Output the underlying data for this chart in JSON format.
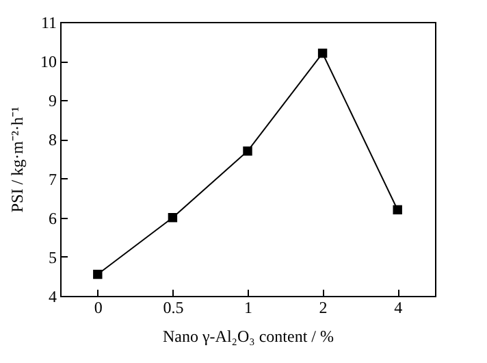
{
  "chart_data": {
    "type": "line",
    "xlabel": "Nano γ-Al₂O₃ content / %",
    "ylabel": "PSI / kg·m⁻²·h⁻¹",
    "categories": [
      "0",
      "0.5",
      "1",
      "2",
      "4"
    ],
    "series": [
      {
        "color": "#000000",
        "values": [
          4.55,
          6.0,
          7.7,
          10.2,
          6.2
        ]
      }
    ],
    "ylim": [
      4,
      11
    ],
    "yticks": [
      4,
      5,
      6,
      7,
      8,
      9,
      10,
      11
    ],
    "grid": false,
    "legend": false,
    "marker": "square",
    "line_style": "solid"
  }
}
